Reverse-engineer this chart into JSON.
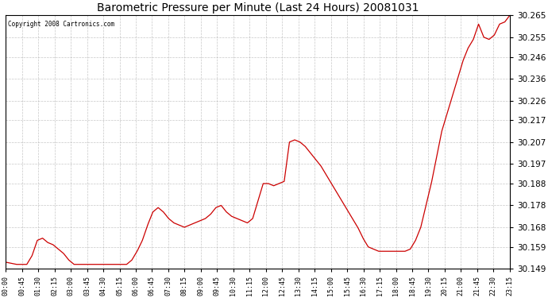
{
  "title": "Barometric Pressure per Minute (Last 24 Hours) 20081031",
  "copyright": "Copyright 2008 Cartronics.com",
  "line_color": "#cc0000",
  "background_color": "#ffffff",
  "plot_background": "#ffffff",
  "grid_color": "#b0b0b0",
  "ylim": [
    30.149,
    30.265
  ],
  "yticks": [
    30.149,
    30.159,
    30.168,
    30.178,
    30.188,
    30.197,
    30.207,
    30.217,
    30.226,
    30.236,
    30.246,
    30.255,
    30.265
  ],
  "xtick_labels": [
    "00:00",
    "00:45",
    "01:30",
    "02:15",
    "03:00",
    "03:45",
    "04:30",
    "05:15",
    "06:00",
    "06:45",
    "07:30",
    "08:15",
    "09:00",
    "09:45",
    "10:30",
    "11:15",
    "12:00",
    "12:45",
    "13:30",
    "14:15",
    "15:00",
    "15:45",
    "16:30",
    "17:15",
    "18:00",
    "18:45",
    "19:30",
    "20:15",
    "21:00",
    "21:45",
    "22:30",
    "23:15"
  ],
  "keypoints_x": [
    0,
    30,
    60,
    75,
    90,
    105,
    120,
    135,
    150,
    165,
    180,
    195,
    210,
    225,
    240,
    255,
    270,
    285,
    300,
    315,
    330,
    345,
    360,
    375,
    390,
    405,
    420,
    435,
    450,
    465,
    480,
    495,
    510,
    525,
    540,
    555,
    570,
    585,
    600,
    615,
    630,
    645,
    660,
    675,
    690,
    705,
    720,
    735,
    750,
    765,
    780,
    795,
    810,
    825,
    840,
    855,
    870,
    885,
    900,
    915,
    930,
    945,
    960,
    975,
    990,
    1005,
    1020,
    1035,
    1050,
    1065,
    1080,
    1095,
    1110,
    1125,
    1140,
    1155,
    1170,
    1185,
    1200,
    1215,
    1230,
    1245,
    1260,
    1275,
    1290,
    1305,
    1320,
    1335,
    1350,
    1365,
    1380,
    1395,
    1410,
    1425,
    1439
  ],
  "keypoints_y": [
    30.152,
    30.151,
    30.151,
    30.155,
    30.162,
    30.163,
    30.161,
    30.16,
    30.158,
    30.156,
    30.153,
    30.151,
    30.151,
    30.151,
    30.151,
    30.151,
    30.151,
    30.151,
    30.151,
    30.151,
    30.151,
    30.151,
    30.153,
    30.157,
    30.162,
    30.169,
    30.175,
    30.177,
    30.175,
    30.172,
    30.17,
    30.169,
    30.168,
    30.169,
    30.17,
    30.171,
    30.172,
    30.174,
    30.177,
    30.178,
    30.175,
    30.173,
    30.172,
    30.171,
    30.17,
    30.172,
    30.18,
    30.188,
    30.188,
    30.187,
    30.188,
    30.189,
    30.207,
    30.208,
    30.207,
    30.205,
    30.202,
    30.199,
    30.196,
    30.192,
    30.188,
    30.184,
    30.18,
    30.176,
    30.172,
    30.168,
    30.163,
    30.159,
    30.158,
    30.157,
    30.157,
    30.157,
    30.157,
    30.157,
    30.157,
    30.158,
    30.162,
    30.168,
    30.178,
    30.188,
    30.2,
    30.212,
    30.22,
    30.228,
    30.236,
    30.244,
    30.25,
    30.254,
    30.261,
    30.255,
    30.254,
    30.256,
    30.261,
    30.262,
    30.265
  ]
}
